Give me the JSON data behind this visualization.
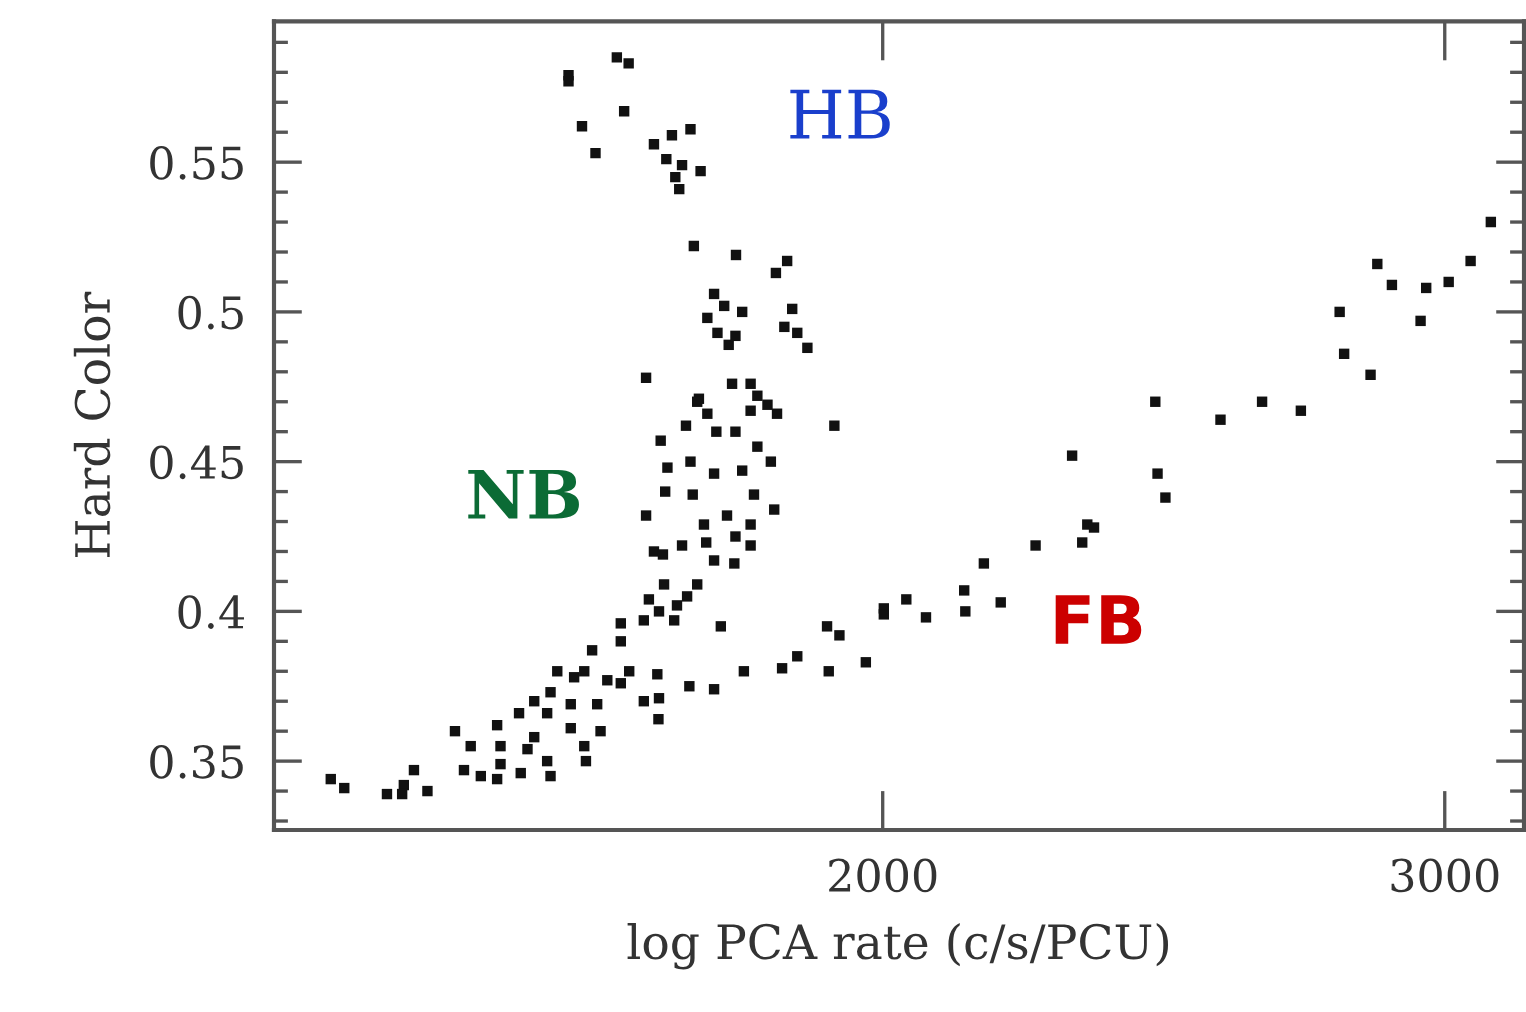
{
  "chart_data": {
    "type": "scatter",
    "xlabel": "log PCA rate (c/s/PCU)",
    "ylabel": "Hard Color",
    "xlim": [
      917,
      3141
    ],
    "ylim": [
      0.327,
      0.597
    ],
    "xticks": [
      2000,
      3000
    ],
    "yticks": [
      {
        "value": 0.33,
        "label": null
      },
      {
        "value": 0.34,
        "label": null
      },
      0.35,
      {
        "value": 0.36,
        "label": null
      },
      {
        "value": 0.37,
        "label": null
      },
      {
        "value": 0.38,
        "label": null
      },
      {
        "value": 0.39,
        "label": null
      },
      0.4,
      {
        "value": 0.41,
        "label": null
      },
      {
        "value": 0.42,
        "label": null
      },
      {
        "value": 0.43,
        "label": null
      },
      {
        "value": 0.44,
        "label": null
      },
      0.45,
      {
        "value": 0.46,
        "label": null
      },
      {
        "value": 0.47,
        "label": null
      },
      {
        "value": 0.48,
        "label": null
      },
      {
        "value": 0.49,
        "label": null
      },
      0.5,
      {
        "value": 0.51,
        "label": null
      },
      {
        "value": 0.52,
        "label": null
      },
      {
        "value": 0.53,
        "label": null
      },
      {
        "value": 0.54,
        "label": null
      },
      0.55,
      {
        "value": 0.56,
        "label": null
      },
      {
        "value": 0.57,
        "label": null
      },
      {
        "value": 0.58,
        "label": null
      },
      {
        "value": 0.59,
        "label": null
      }
    ],
    "marker": "square",
    "grid": false,
    "legend": false,
    "annotations": [
      "HB",
      "NB",
      "FB"
    ],
    "series": [
      {
        "color": "#111111",
        "x": [
          1441,
          1441,
          1527,
          1548,
          1540,
          1465,
          1489,
          1593,
          1625,
          1658,
          1615,
          1643,
          1631,
          1638,
          1676,
          1664,
          1739,
          1830,
          1810,
          1700,
          1718,
          1750,
          1688,
          1706,
          1726,
          1738,
          1839,
          1825,
          1848,
          1866,
          1579,
          1732,
          1765,
          1673,
          1777,
          1795,
          1688,
          1670,
          1765,
          1812,
          1914,
          1605,
          1650,
          1704,
          1738,
          1777,
          1801,
          1617,
          1658,
          1700,
          1750,
          1613,
          1662,
          1771,
          1807,
          1579,
          1682,
          1723,
          1765,
          1738,
          1765,
          1643,
          1686,
          1593,
          1609,
          1700,
          1736,
          1611,
          1670,
          1652,
          1584,
          1634,
          1602,
          1534,
          1575,
          1629,
          1712,
          1534,
          1483,
          1421,
          1451,
          1469,
          1510,
          1549,
          1534,
          1599,
          1409,
          1380,
          1445,
          1492,
          1575,
          1602,
          1656,
          1700,
          1353,
          1403,
          1601,
          1239,
          1314,
          1445,
          1498,
          1380,
          1267,
          1320,
          1469,
          1368,
          1403,
          1472,
          1320,
          1255,
          1285,
          1314,
          1356,
          1409,
          1166,
          1148,
          1018,
          1042,
          1118,
          1145,
          1190,
          1753,
          1821,
          1848,
          1904,
          1970,
          1901,
          1923,
          2002,
          2042,
          2002,
          2077,
          2145,
          2147,
          2180,
          2210,
          2272,
          2337,
          2355,
          2364,
          2376,
          2485,
          2489,
          2503,
          2601,
          2675,
          2744,
          2813,
          2821,
          2868,
          2880,
          2906,
          2957,
          2967,
          3007,
          3046,
          3082
        ],
        "values": [
          0.579,
          0.577,
          0.585,
          0.583,
          0.567,
          0.562,
          0.553,
          0.556,
          0.559,
          0.561,
          0.551,
          0.549,
          0.545,
          0.541,
          0.547,
          0.522,
          0.519,
          0.517,
          0.513,
          0.506,
          0.502,
          0.5,
          0.498,
          0.493,
          0.489,
          0.492,
          0.501,
          0.495,
          0.493,
          0.488,
          0.478,
          0.476,
          0.476,
          0.471,
          0.472,
          0.469,
          0.466,
          0.47,
          0.467,
          0.466,
          0.462,
          0.457,
          0.462,
          0.46,
          0.46,
          0.455,
          0.45,
          0.448,
          0.45,
          0.446,
          0.447,
          0.44,
          0.439,
          0.439,
          0.434,
          0.432,
          0.429,
          0.432,
          0.429,
          0.425,
          0.422,
          0.422,
          0.423,
          0.42,
          0.419,
          0.417,
          0.416,
          0.409,
          0.409,
          0.405,
          0.404,
          0.402,
          0.4,
          0.396,
          0.397,
          0.397,
          0.395,
          0.39,
          0.387,
          0.38,
          0.378,
          0.38,
          0.377,
          0.38,
          0.376,
          0.379,
          0.373,
          0.37,
          0.369,
          0.369,
          0.37,
          0.371,
          0.375,
          0.374,
          0.366,
          0.366,
          0.364,
          0.36,
          0.362,
          0.361,
          0.36,
          0.358,
          0.355,
          0.355,
          0.355,
          0.354,
          0.35,
          0.35,
          0.349,
          0.347,
          0.345,
          0.344,
          0.346,
          0.345,
          0.347,
          0.342,
          0.344,
          0.341,
          0.339,
          0.339,
          0.34,
          0.38,
          0.381,
          0.385,
          0.38,
          0.383,
          0.395,
          0.392,
          0.401,
          0.404,
          0.399,
          0.398,
          0.407,
          0.4,
          0.416,
          0.403,
          0.422,
          0.452,
          0.423,
          0.429,
          0.428,
          0.47,
          0.446,
          0.438,
          0.464,
          0.47,
          0.467,
          0.5,
          0.486,
          0.479,
          0.516,
          0.509,
          0.497,
          0.508,
          0.51,
          0.517,
          0.53
        ]
      }
    ]
  }
}
